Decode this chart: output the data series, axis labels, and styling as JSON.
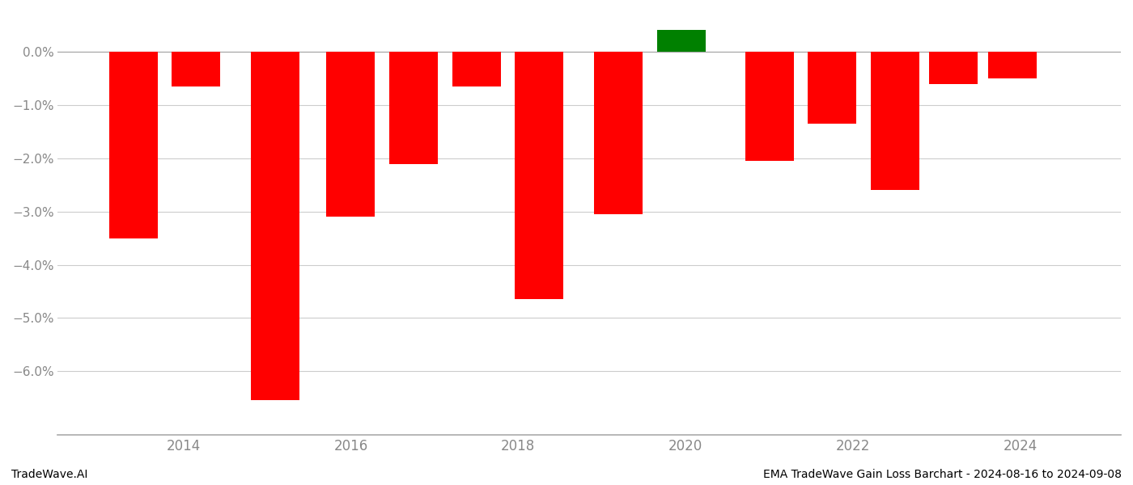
{
  "x_positions": [
    2013.4,
    2014.15,
    2015.1,
    2016.0,
    2016.75,
    2017.5,
    2018.25,
    2019.2,
    2019.95,
    2021.0,
    2021.75,
    2022.5,
    2023.2,
    2023.9
  ],
  "values": [
    -3.5,
    -0.65,
    -6.55,
    -3.1,
    -2.1,
    -0.65,
    -4.65,
    -3.05,
    0.42,
    -2.05,
    -1.35,
    -2.6,
    -0.6,
    -0.5
  ],
  "colors": [
    "#ff0000",
    "#ff0000",
    "#ff0000",
    "#ff0000",
    "#ff0000",
    "#ff0000",
    "#ff0000",
    "#ff0000",
    "#008000",
    "#ff0000",
    "#ff0000",
    "#ff0000",
    "#ff0000",
    "#ff0000"
  ],
  "bar_width": 0.58,
  "ylim": [
    -7.2,
    0.75
  ],
  "yticks": [
    0.0,
    -1.0,
    -2.0,
    -3.0,
    -4.0,
    -5.0,
    -6.0
  ],
  "xlim": [
    2012.5,
    2025.2
  ],
  "xticks": [
    2014,
    2016,
    2018,
    2020,
    2022,
    2024
  ],
  "footer_left": "TradeWave.AI",
  "footer_right": "EMA TradeWave Gain Loss Barchart - 2024-08-16 to 2024-09-08",
  "bg_color": "#ffffff",
  "grid_color": "#cccccc",
  "tick_color": "#888888",
  "spine_color": "#aaaaaa"
}
